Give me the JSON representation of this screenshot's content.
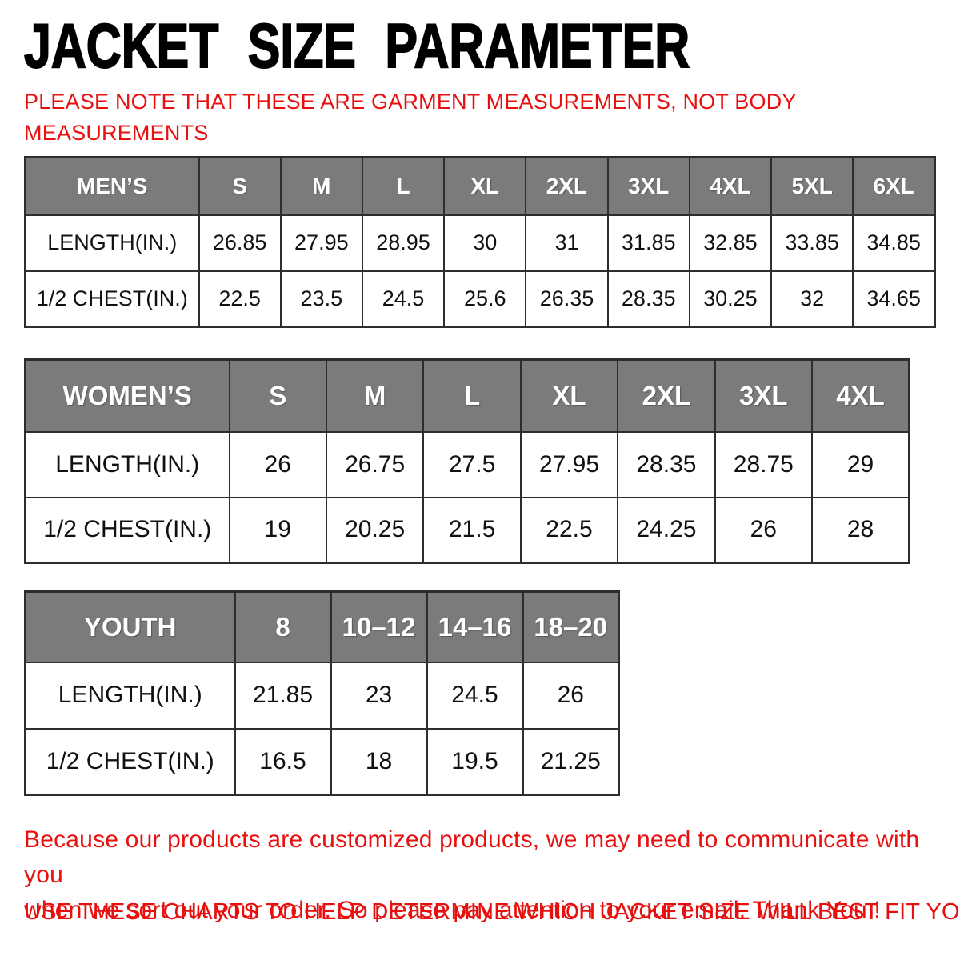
{
  "page": {
    "title": "JACKET SIZE PARAMETER",
    "note_lines": [
      "PLEASE NOTE THAT THESE ARE GARMENT MEASUREMENTS, NOT BODY",
      "MEASUREMENTS"
    ],
    "footer_lines": [
      "Because our products are customized products, we may need to communicate with you",
      "when we sort out your order. So please pay attention to your email. Thank You !"
    ],
    "footer_instruction": "USE THESE CHARTS TO HELP DETERMINE WHICH JACKET SIZE WILL BEST FIT YOU."
  },
  "colors": {
    "accent_red": "#e8100f",
    "header_gray": "#7b7b7b",
    "border_dark": "#2d2d2d",
    "text_black": "#000000"
  },
  "chart_data": [
    {
      "type": "table",
      "id": "mens",
      "group_label": "MEN’S",
      "sizes": [
        "S",
        "M",
        "L",
        "XL",
        "2XL",
        "3XL",
        "4XL",
        "5XL",
        "6XL"
      ],
      "rows": [
        {
          "label": "LENGTH(IN.)",
          "values": [
            "26.85",
            "27.95",
            "28.95",
            "30",
            "31",
            "31.85",
            "32.85",
            "33.85",
            "34.85"
          ]
        },
        {
          "label": "1/2 CHEST(IN.)",
          "values": [
            "22.5",
            "23.5",
            "24.5",
            "25.6",
            "26.35",
            "28.35",
            "30.25",
            "32",
            "34.65"
          ]
        }
      ]
    },
    {
      "type": "table",
      "id": "womens",
      "group_label": "WOMEN’S",
      "sizes": [
        "S",
        "M",
        "L",
        "XL",
        "2XL",
        "3XL",
        "4XL"
      ],
      "rows": [
        {
          "label": "LENGTH(IN.)",
          "values": [
            "26",
            "26.75",
            "27.5",
            "27.95",
            "28.35",
            "28.75",
            "29"
          ]
        },
        {
          "label": "1/2 CHEST(IN.)",
          "values": [
            "19",
            "20.25",
            "21.5",
            "22.5",
            "24.25",
            "26",
            "28"
          ]
        }
      ]
    },
    {
      "type": "table",
      "id": "youth",
      "group_label": "YOUTH",
      "sizes": [
        "8",
        "10–12",
        "14–16",
        "18–20"
      ],
      "rows": [
        {
          "label": "LENGTH(IN.)",
          "values": [
            "21.85",
            "23",
            "24.5",
            "26"
          ]
        },
        {
          "label": "1/2 CHEST(IN.)",
          "values": [
            "16.5",
            "18",
            "19.5",
            "21.25"
          ]
        }
      ]
    }
  ]
}
